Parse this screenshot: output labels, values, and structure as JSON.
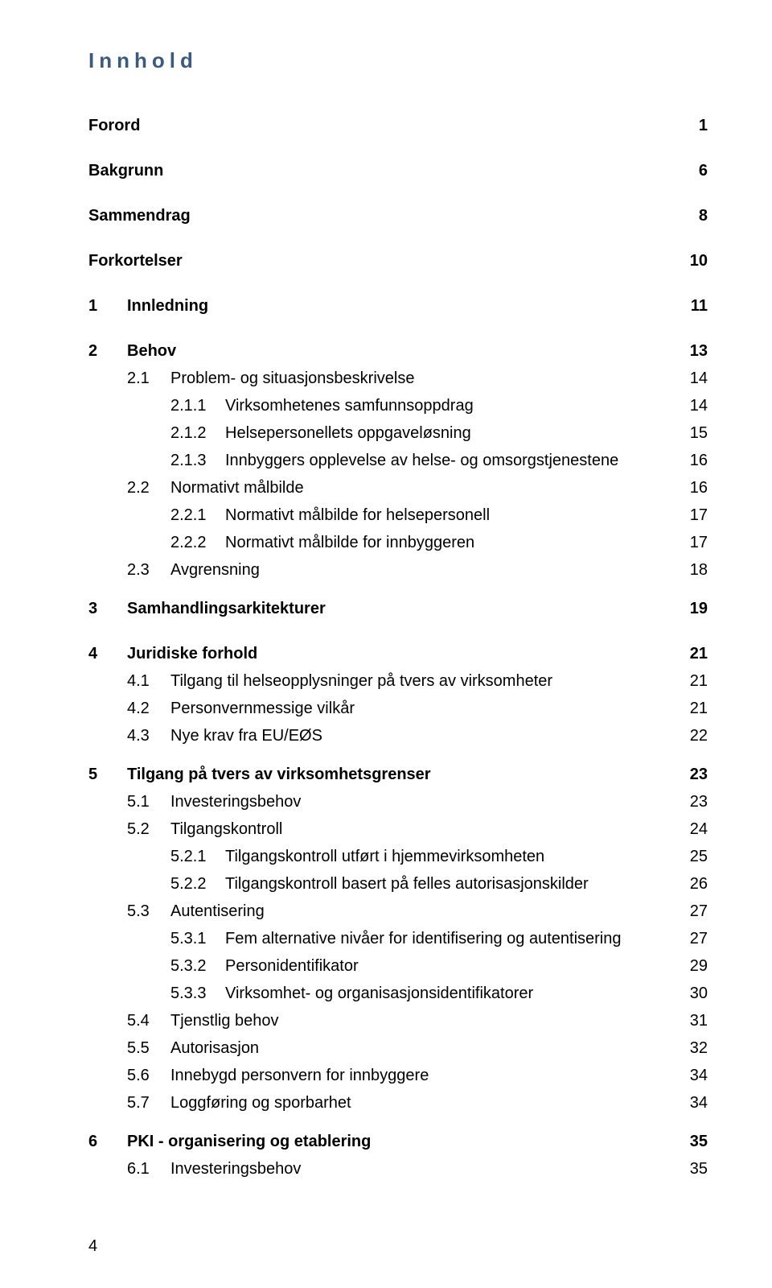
{
  "title": "Innhold",
  "footer_page": "4",
  "colors": {
    "title": "#3b5a80",
    "text": "#000000",
    "background": "#ffffff"
  },
  "toc": [
    {
      "level": 0,
      "bold": true,
      "num": "",
      "text": "Forord",
      "page": "1",
      "gap": "lg",
      "nw": ""
    },
    {
      "level": 0,
      "bold": true,
      "num": "",
      "text": "Bakgrunn",
      "page": "6",
      "gap": "lg",
      "nw": ""
    },
    {
      "level": 0,
      "bold": true,
      "num": "",
      "text": "Sammendrag",
      "page": "8",
      "gap": "lg",
      "nw": ""
    },
    {
      "level": 0,
      "bold": true,
      "num": "",
      "text": "Forkortelser",
      "page": "10",
      "gap": "lg",
      "nw": ""
    },
    {
      "level": 0,
      "bold": true,
      "num": "1",
      "text": "Innledning",
      "page": "11",
      "gap": "lg",
      "nw": "w1"
    },
    {
      "level": 0,
      "bold": true,
      "num": "2",
      "text": "Behov",
      "page": "13",
      "gap": "sm",
      "nw": "w1"
    },
    {
      "level": 1,
      "bold": false,
      "num": "2.1",
      "text": "Problem- og situasjonsbeskrivelse",
      "page": "14",
      "gap": "sm",
      "nw": "w2"
    },
    {
      "level": 2,
      "bold": false,
      "num": "2.1.1",
      "text": "Virksomhetenes samfunnsoppdrag",
      "page": "14",
      "gap": "sm",
      "nw": "w3"
    },
    {
      "level": 2,
      "bold": false,
      "num": "2.1.2",
      "text": "Helsepersonellets oppgaveløsning",
      "page": "15",
      "gap": "sm",
      "nw": "w3"
    },
    {
      "level": 2,
      "bold": false,
      "num": "2.1.3",
      "text": "Innbyggers opplevelse av helse- og omsorgstjenestene",
      "page": "16",
      "gap": "sm",
      "nw": "w3"
    },
    {
      "level": 1,
      "bold": false,
      "num": "2.2",
      "text": "Normativt målbilde",
      "page": "16",
      "gap": "sm",
      "nw": "w2"
    },
    {
      "level": 2,
      "bold": false,
      "num": "2.2.1",
      "text": "Normativt målbilde for helsepersonell",
      "page": "17",
      "gap": "sm",
      "nw": "w3"
    },
    {
      "level": 2,
      "bold": false,
      "num": "2.2.2",
      "text": "Normativt målbilde for innbyggeren",
      "page": "17",
      "gap": "sm",
      "nw": "w3"
    },
    {
      "level": 1,
      "bold": false,
      "num": "2.3",
      "text": "Avgrensning",
      "page": "18",
      "gap": "md",
      "nw": "w2"
    },
    {
      "level": 0,
      "bold": true,
      "num": "3",
      "text": "Samhandlingsarkitekturer",
      "page": "19",
      "gap": "lg",
      "nw": "w1"
    },
    {
      "level": 0,
      "bold": true,
      "num": "4",
      "text": "Juridiske forhold",
      "page": "21",
      "gap": "sm",
      "nw": "w1"
    },
    {
      "level": 1,
      "bold": false,
      "num": "4.1",
      "text": "Tilgang til helseopplysninger på tvers av virksomheter",
      "page": "21",
      "gap": "sm",
      "nw": "w2"
    },
    {
      "level": 1,
      "bold": false,
      "num": "4.2",
      "text": "Personvernmessige vilkår",
      "page": "21",
      "gap": "sm",
      "nw": "w2"
    },
    {
      "level": 1,
      "bold": false,
      "num": "4.3",
      "text": "Nye krav fra EU/EØS",
      "page": "22",
      "gap": "md",
      "nw": "w2"
    },
    {
      "level": 0,
      "bold": true,
      "num": "5",
      "text": "Tilgang på tvers av virksomhetsgrenser",
      "page": "23",
      "gap": "sm",
      "nw": "w1"
    },
    {
      "level": 1,
      "bold": false,
      "num": "5.1",
      "text": "Investeringsbehov",
      "page": "23",
      "gap": "sm",
      "nw": "w2"
    },
    {
      "level": 1,
      "bold": false,
      "num": "5.2",
      "text": "Tilgangskontroll",
      "page": "24",
      "gap": "sm",
      "nw": "w2"
    },
    {
      "level": 2,
      "bold": false,
      "num": "5.2.1",
      "text": "Tilgangskontroll utført i hjemmevirksomheten",
      "page": "25",
      "gap": "sm",
      "nw": "w3"
    },
    {
      "level": 2,
      "bold": false,
      "num": "5.2.2",
      "text": "Tilgangskontroll basert på felles autorisasjonskilder",
      "page": "26",
      "gap": "sm",
      "nw": "w3"
    },
    {
      "level": 1,
      "bold": false,
      "num": "5.3",
      "text": "Autentisering",
      "page": "27",
      "gap": "sm",
      "nw": "w2"
    },
    {
      "level": 2,
      "bold": false,
      "num": "5.3.1",
      "text": "Fem alternative nivåer for identifisering og autentisering",
      "page": "27",
      "gap": "sm",
      "nw": "w3"
    },
    {
      "level": 2,
      "bold": false,
      "num": "5.3.2",
      "text": "Personidentifikator",
      "page": "29",
      "gap": "sm",
      "nw": "w3"
    },
    {
      "level": 2,
      "bold": false,
      "num": "5.3.3",
      "text": "Virksomhet- og organisasjonsidentifikatorer",
      "page": "30",
      "gap": "sm",
      "nw": "w3"
    },
    {
      "level": 1,
      "bold": false,
      "num": "5.4",
      "text": "Tjenstlig behov",
      "page": "31",
      "gap": "sm",
      "nw": "w2"
    },
    {
      "level": 1,
      "bold": false,
      "num": "5.5",
      "text": "Autorisasjon",
      "page": "32",
      "gap": "sm",
      "nw": "w2"
    },
    {
      "level": 1,
      "bold": false,
      "num": "5.6",
      "text": "Innebygd personvern for innbyggere",
      "page": "34",
      "gap": "sm",
      "nw": "w2"
    },
    {
      "level": 1,
      "bold": false,
      "num": "5.7",
      "text": "Loggføring og sporbarhet",
      "page": "34",
      "gap": "md",
      "nw": "w2"
    },
    {
      "level": 0,
      "bold": true,
      "num": "6",
      "text": "PKI - organisering og etablering",
      "page": "35",
      "gap": "sm",
      "nw": "w1"
    },
    {
      "level": 1,
      "bold": false,
      "num": "6.1",
      "text": "Investeringsbehov",
      "page": "35",
      "gap": "sm",
      "nw": "w2"
    }
  ]
}
